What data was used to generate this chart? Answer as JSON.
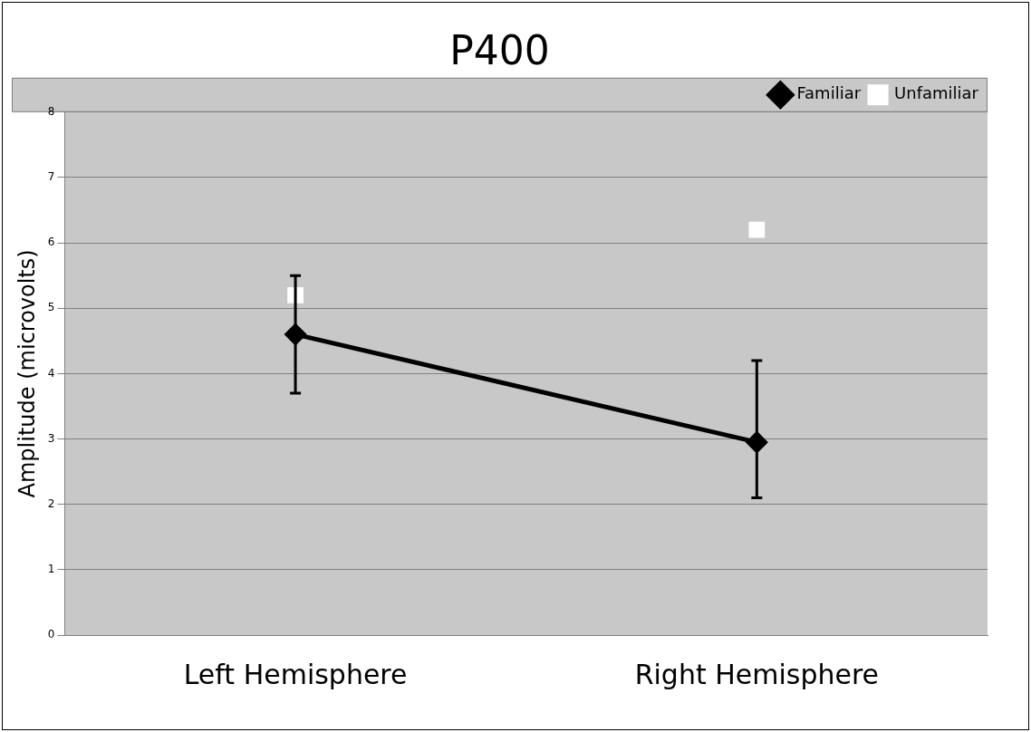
{
  "chart_data": {
    "type": "line",
    "title": "P400",
    "ylabel": "Amplitude (microvolts)",
    "categories": [
      "Left Hemisphere",
      "Right Hemisphere"
    ],
    "series": [
      {
        "name": "Familiar",
        "type": "line",
        "color": "#000000",
        "marker": "diamond",
        "values": [
          4.6,
          2.95
        ],
        "errors": [
          [
            3.7,
            5.5
          ],
          [
            2.1,
            4.2
          ]
        ]
      },
      {
        "name": "Unfamiliar",
        "type": "scatter",
        "color": "#ffffff",
        "marker": "square",
        "values": [
          5.2,
          6.2
        ]
      }
    ],
    "ylim": [
      0,
      8
    ],
    "yticks": [
      0,
      1,
      2,
      3,
      4,
      5,
      6,
      7,
      8
    ],
    "grid": "y",
    "legend": "top right"
  }
}
